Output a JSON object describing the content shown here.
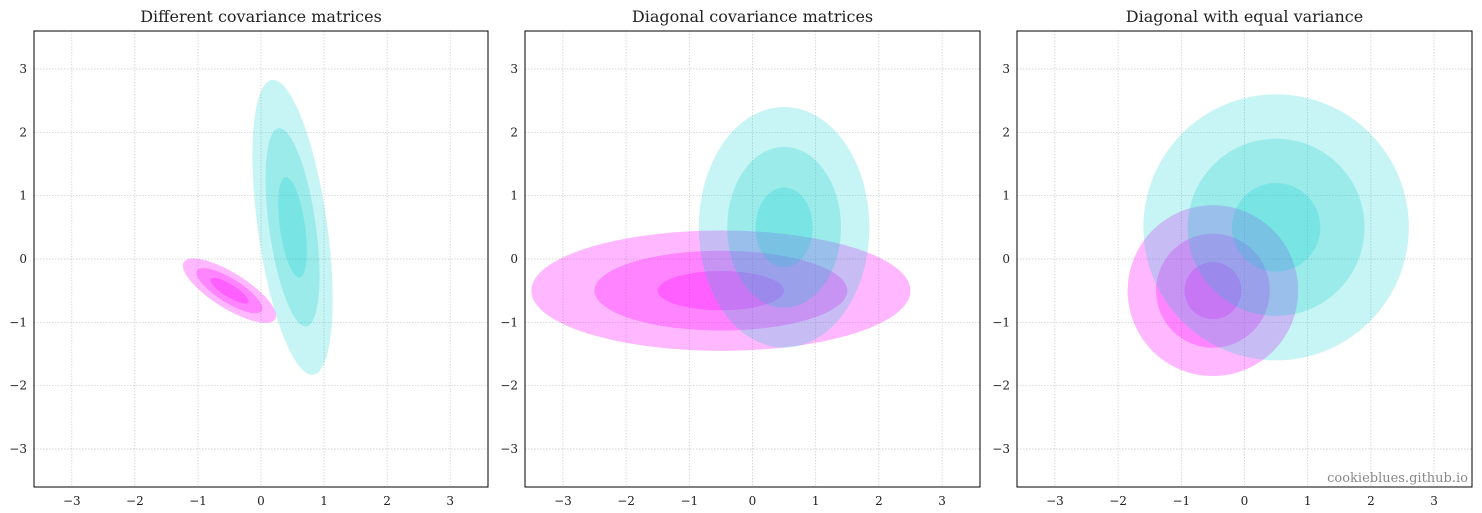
{
  "watermark": "cookieblues.github.io",
  "colors": {
    "class_a": "#ff00ff",
    "class_b": "#00cccc",
    "grid": "#c8c8c8",
    "axes": "#000000"
  },
  "chart_data": [
    {
      "type": "scatter",
      "title": "Different covariance matrices",
      "xlim": [
        -3.6,
        3.6
      ],
      "ylim": [
        -3.6,
        3.6
      ],
      "xticks": [
        "−3",
        "−2",
        "−1",
        "0",
        "1",
        "2",
        "3"
      ],
      "yticks": [
        "−3",
        "−2",
        "−1",
        "0",
        "1",
        "2",
        "3"
      ],
      "grid": true,
      "series": [
        {
          "color": "#ff00ff",
          "center": [
            -0.5,
            -0.5
          ],
          "ellipses": [
            {
              "rx": 0.28,
              "ry": 0.85,
              "angle_deg": 58,
              "opacity": 0.28
            },
            {
              "rx": 0.19,
              "ry": 0.6,
              "angle_deg": 58,
              "opacity": 0.28
            },
            {
              "rx": 0.1,
              "ry": 0.35,
              "angle_deg": 58,
              "opacity": 0.28
            }
          ]
        },
        {
          "color": "#00cccc",
          "center": [
            0.5,
            0.5
          ],
          "ellipses": [
            {
              "rx": 0.55,
              "ry": 2.35,
              "angle_deg": 8,
              "opacity": 0.22
            },
            {
              "rx": 0.37,
              "ry": 1.58,
              "angle_deg": 8,
              "opacity": 0.22
            },
            {
              "rx": 0.2,
              "ry": 0.8,
              "angle_deg": 8,
              "opacity": 0.22
            }
          ]
        }
      ]
    },
    {
      "type": "scatter",
      "title": "Diagonal covariance matrices",
      "xlim": [
        -3.6,
        3.6
      ],
      "ylim": [
        -3.6,
        3.6
      ],
      "xticks": [
        "−3",
        "−2",
        "−1",
        "0",
        "1",
        "2",
        "3"
      ],
      "yticks": [
        "−3",
        "−2",
        "−1",
        "0",
        "1",
        "2",
        "3"
      ],
      "grid": true,
      "series": [
        {
          "color": "#ff00ff",
          "center": [
            -0.5,
            -0.5
          ],
          "ellipses": [
            {
              "rx": 3.0,
              "ry": 0.95,
              "angle_deg": 0,
              "opacity": 0.28
            },
            {
              "rx": 2.0,
              "ry": 0.63,
              "angle_deg": 0,
              "opacity": 0.28
            },
            {
              "rx": 1.0,
              "ry": 0.31,
              "angle_deg": 0,
              "opacity": 0.28
            }
          ]
        },
        {
          "color": "#00cccc",
          "center": [
            0.5,
            0.5
          ],
          "ellipses": [
            {
              "rx": 1.35,
              "ry": 1.9,
              "angle_deg": 0,
              "opacity": 0.22
            },
            {
              "rx": 0.9,
              "ry": 1.27,
              "angle_deg": 0,
              "opacity": 0.22
            },
            {
              "rx": 0.45,
              "ry": 0.63,
              "angle_deg": 0,
              "opacity": 0.22
            }
          ]
        }
      ]
    },
    {
      "type": "scatter",
      "title": "Diagonal with equal variance",
      "xlim": [
        -3.6,
        3.6
      ],
      "ylim": [
        -3.6,
        3.6
      ],
      "xticks": [
        "−3",
        "−2",
        "−1",
        "0",
        "1",
        "2",
        "3"
      ],
      "yticks": [
        "−3",
        "−2",
        "−1",
        "0",
        "1",
        "2",
        "3"
      ],
      "grid": true,
      "series": [
        {
          "color": "#ff00ff",
          "center": [
            -0.5,
            -0.5
          ],
          "ellipses": [
            {
              "rx": 1.35,
              "ry": 1.35,
              "angle_deg": 0,
              "opacity": 0.28
            },
            {
              "rx": 0.9,
              "ry": 0.9,
              "angle_deg": 0,
              "opacity": 0.28
            },
            {
              "rx": 0.45,
              "ry": 0.45,
              "angle_deg": 0,
              "opacity": 0.28
            }
          ]
        },
        {
          "color": "#00cccc",
          "center": [
            0.5,
            0.5
          ],
          "ellipses": [
            {
              "rx": 2.1,
              "ry": 2.1,
              "angle_deg": 0,
              "opacity": 0.22
            },
            {
              "rx": 1.4,
              "ry": 1.4,
              "angle_deg": 0,
              "opacity": 0.22
            },
            {
              "rx": 0.7,
              "ry": 0.7,
              "angle_deg": 0,
              "opacity": 0.22
            }
          ]
        }
      ]
    }
  ]
}
